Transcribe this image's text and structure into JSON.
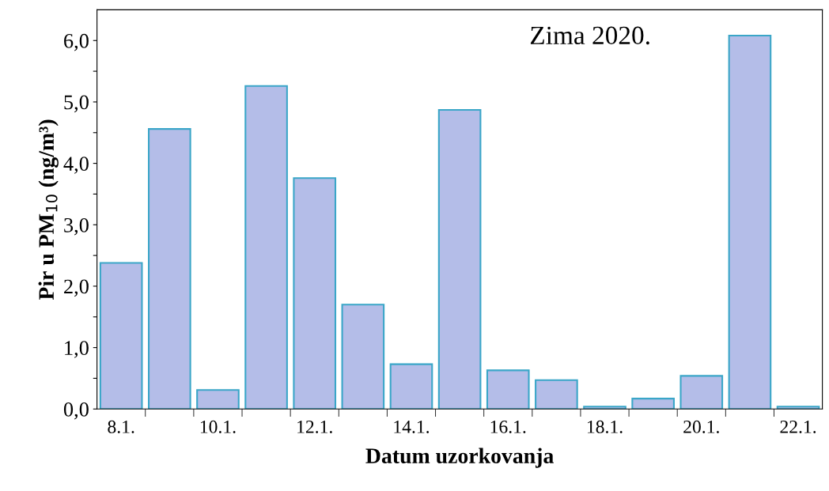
{
  "chart_data": {
    "type": "bar",
    "xlabel": "Datum uzorkovanja",
    "ylabel": "Pir u PM$_{10}$ (ng/m³)",
    "annotations": [
      "Zima 2020."
    ],
    "categories": [
      "8.1.",
      null,
      "10.1.",
      null,
      "12.1.",
      null,
      "14.1.",
      null,
      "16.1.",
      null,
      "18.1.",
      null,
      "20.1.",
      null,
      "22.1."
    ],
    "values": [
      2.38,
      4.56,
      0.31,
      5.26,
      3.76,
      1.7,
      0.73,
      4.87,
      0.63,
      0.47,
      0.04,
      0.17,
      0.54,
      6.08,
      0.04
    ],
    "color": "#b4bde8",
    "ylim": [
      0,
      6.5
    ],
    "yticks": [
      {
        "value": 0,
        "label": "0,0"
      },
      {
        "value": 0.5,
        "label": null
      },
      {
        "value": 1,
        "label": "1,0"
      },
      {
        "value": 1.5,
        "label": null
      },
      {
        "value": 2,
        "label": "2,0"
      },
      {
        "value": 2.5,
        "label": null
      },
      {
        "value": 3,
        "label": "3,0"
      },
      {
        "value": 3.5,
        "label": null
      },
      {
        "value": 4,
        "label": "4,0"
      },
      {
        "value": 4.5,
        "label": null
      },
      {
        "value": 5,
        "label": "5,0"
      },
      {
        "value": 5.5,
        "label": null
      },
      {
        "value": 6,
        "label": "6,0"
      }
    ],
    "grid": false,
    "legend": false
  }
}
